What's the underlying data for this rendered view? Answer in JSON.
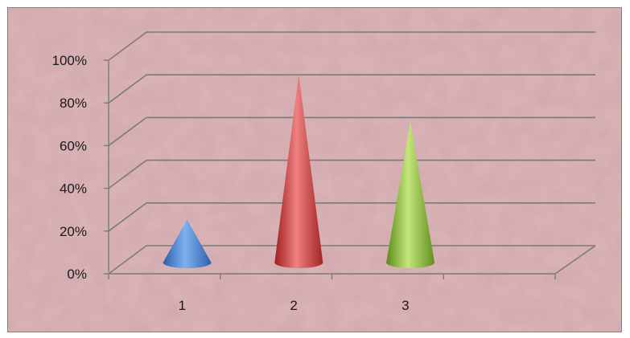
{
  "chart_data": {
    "type": "bar",
    "style": "3d-cone",
    "categories": [
      "1",
      "2",
      "3"
    ],
    "values": [
      20,
      88,
      66
    ],
    "ylim": [
      0,
      100
    ],
    "yticks": [
      "0%",
      "20%",
      "40%",
      "60%",
      "80%",
      "100%"
    ],
    "grid": true,
    "legend": "none",
    "colors": {
      "background": "#ddb5b8",
      "gridline": "#7a7a7a",
      "series": [
        "#4a86d8",
        "#d94040",
        "#92c53b"
      ]
    }
  }
}
